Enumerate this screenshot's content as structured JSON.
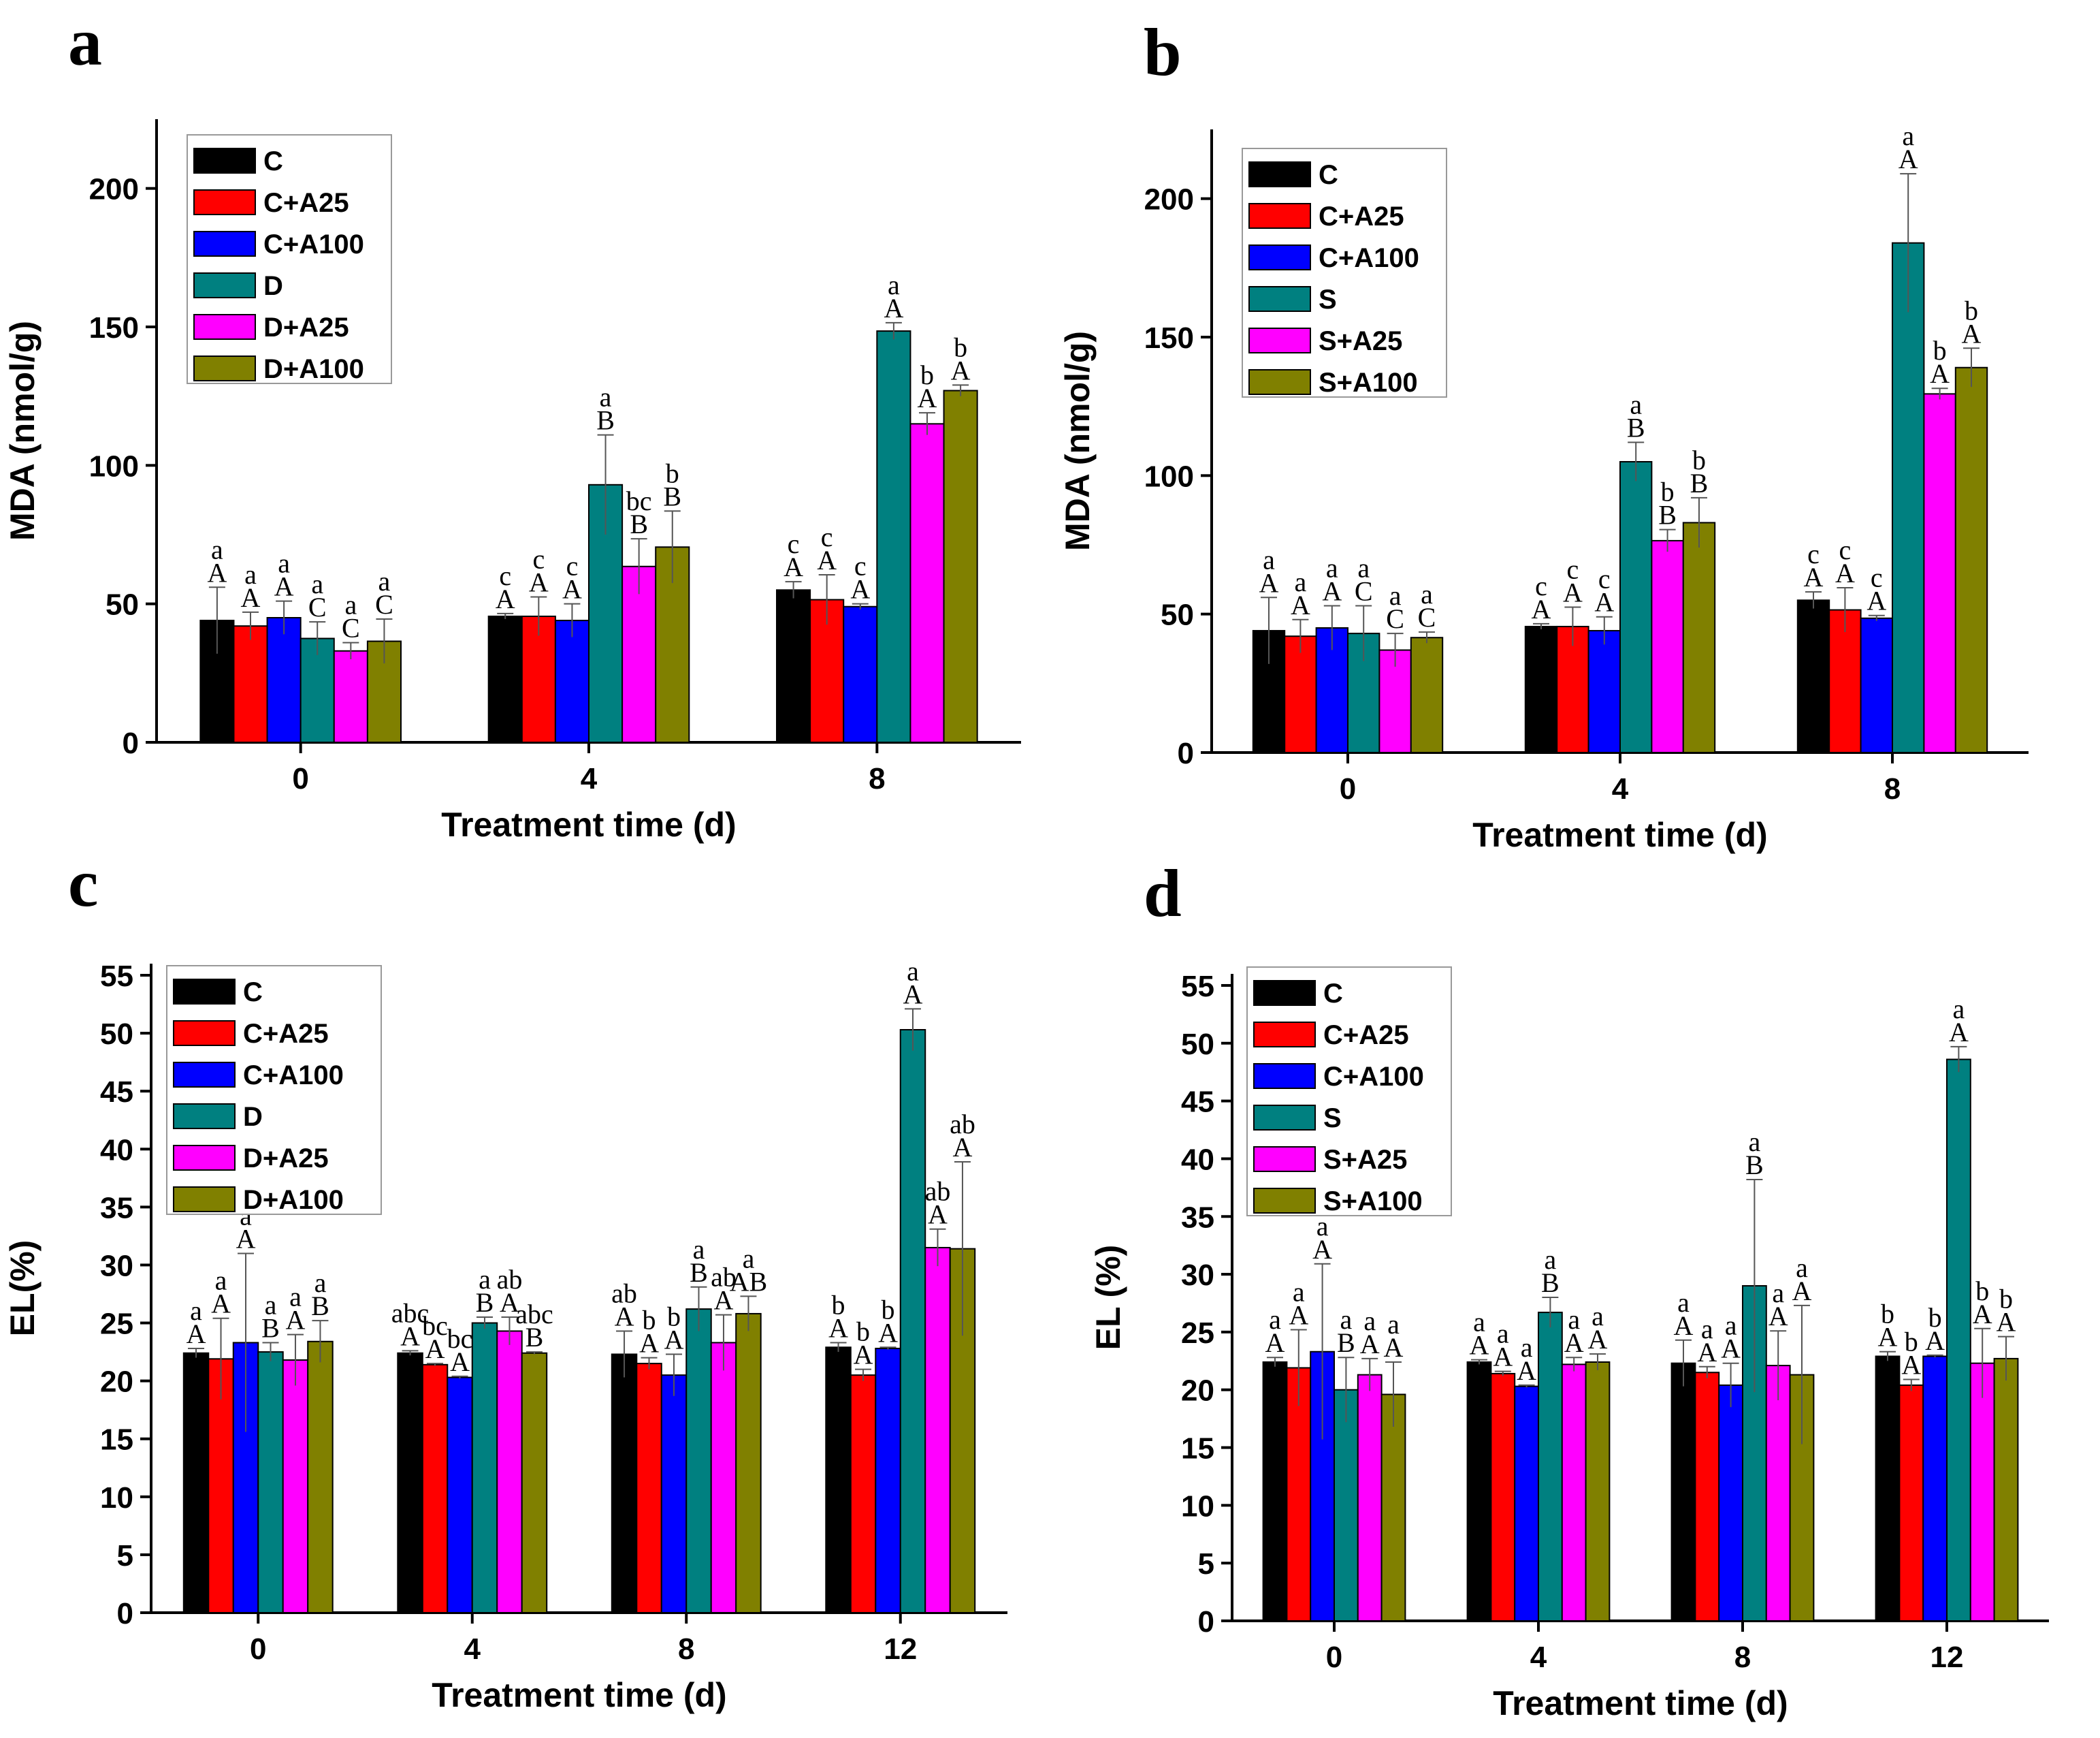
{
  "figure": {
    "panel_letters": [
      "a",
      "b",
      "c",
      "d"
    ]
  },
  "chart_data": [
    {
      "panel": "a",
      "type": "bar",
      "xlabel": "Treatment time (d)",
      "ylabel": "MDA (nmol/g)",
      "ylim": [
        0,
        225
      ],
      "yticks": [
        0,
        50,
        100,
        150,
        200
      ],
      "categories": [
        "0",
        "4",
        "8"
      ],
      "legend_position": "top-left",
      "series": [
        {
          "name": "C",
          "color": "#000000",
          "values": [
            44,
            45.5,
            55
          ],
          "errors": [
            12,
            1,
            3
          ],
          "lower": [
            "A",
            "A",
            "A"
          ],
          "upper": [
            "a",
            "c",
            "c"
          ]
        },
        {
          "name": "C+A25",
          "color": "#ff0000",
          "values": [
            42,
            45.5,
            51.5
          ],
          "errors": [
            5,
            7,
            9
          ],
          "lower": [
            "A",
            "A",
            "A"
          ],
          "upper": [
            "a",
            "c",
            "c"
          ]
        },
        {
          "name": "C+A100",
          "color": "#0000ff",
          "values": [
            45,
            44,
            49
          ],
          "errors": [
            6,
            6,
            1
          ],
          "lower": [
            "A",
            "A",
            "A"
          ],
          "upper": [
            "a",
            "c",
            "c"
          ]
        },
        {
          "name": "D",
          "color": "#008080",
          "values": [
            37.5,
            93,
            148.5
          ],
          "errors": [
            6,
            18,
            3
          ],
          "lower": [
            "C",
            "B",
            "A"
          ],
          "upper": [
            "a",
            "a",
            "a"
          ]
        },
        {
          "name": "D+A25",
          "color": "#ff00ff",
          "values": [
            33,
            63.5,
            115
          ],
          "errors": [
            3,
            10,
            4
          ],
          "lower": [
            "C",
            "B",
            "A"
          ],
          "upper": [
            "a",
            "bc",
            "b"
          ]
        },
        {
          "name": "D+A100",
          "color": "#808000",
          "values": [
            36.5,
            70.5,
            127
          ],
          "errors": [
            8,
            13,
            2
          ],
          "lower": [
            "C",
            "B",
            "A"
          ],
          "upper": [
            "a",
            "b",
            "b"
          ]
        }
      ]
    },
    {
      "panel": "b",
      "type": "bar",
      "xlabel": "Treatment time (d)",
      "ylabel": "MDA (nmol/g)",
      "ylim": [
        0,
        225
      ],
      "yticks": [
        0,
        50,
        100,
        150,
        200
      ],
      "categories": [
        "0",
        "4",
        "8"
      ],
      "legend_position": "top-left",
      "series": [
        {
          "name": "C",
          "color": "#000000",
          "values": [
            44,
            45.5,
            55
          ],
          "errors": [
            12,
            1,
            3
          ],
          "lower": [
            "A",
            "A",
            "A"
          ],
          "upper": [
            "a",
            "c",
            "c"
          ]
        },
        {
          "name": "C+A25",
          "color": "#ff0000",
          "values": [
            42,
            45.5,
            51.5
          ],
          "errors": [
            6,
            7,
            8
          ],
          "lower": [
            "A",
            "A",
            "A"
          ],
          "upper": [
            "a",
            "c",
            "c"
          ]
        },
        {
          "name": "C+A100",
          "color": "#0000ff",
          "values": [
            45,
            44,
            48.5
          ],
          "errors": [
            8,
            5,
            1
          ],
          "lower": [
            "A",
            "A",
            "A"
          ],
          "upper": [
            "a",
            "c",
            "c"
          ]
        },
        {
          "name": "S",
          "color": "#008080",
          "values": [
            43,
            105,
            184
          ],
          "errors": [
            10,
            7,
            25
          ],
          "lower": [
            "C",
            "B",
            "A"
          ],
          "upper": [
            "a",
            "a",
            "a"
          ]
        },
        {
          "name": "S+A25",
          "color": "#ff00ff",
          "values": [
            37,
            76.5,
            129.5
          ],
          "errors": [
            6,
            4,
            2
          ],
          "lower": [
            "C",
            "B",
            "A"
          ],
          "upper": [
            "a",
            "b",
            "b"
          ]
        },
        {
          "name": "S+A100",
          "color": "#808000",
          "values": [
            41.5,
            83,
            139
          ],
          "errors": [
            2,
            9,
            7
          ],
          "lower": [
            "C",
            "B",
            "A"
          ],
          "upper": [
            "a",
            "b",
            "b"
          ]
        }
      ]
    },
    {
      "panel": "c",
      "type": "bar",
      "xlabel": "Treatment time (d)",
      "ylabel": "EL(%)",
      "ylim": [
        0,
        56
      ],
      "yticks": [
        0,
        5,
        10,
        15,
        20,
        25,
        30,
        35,
        40,
        45,
        50,
        55
      ],
      "categories": [
        "0",
        "4",
        "8",
        "12"
      ],
      "legend_position": "top-left",
      "series": [
        {
          "name": "C",
          "color": "#000000",
          "values": [
            22.4,
            22.4,
            22.3,
            22.9
          ],
          "errors": [
            0.4,
            0.2,
            2,
            0.4
          ],
          "lower": [
            "A",
            "A",
            "A",
            "A"
          ],
          "upper": [
            "a",
            "abc",
            "ab",
            "b"
          ]
        },
        {
          "name": "C+A25",
          "color": "#ff0000",
          "values": [
            21.9,
            21.4,
            21.5,
            20.5
          ],
          "errors": [
            3.5,
            0.1,
            0.5,
            0.5
          ],
          "lower": [
            "A",
            "A",
            "A",
            "A"
          ],
          "upper": [
            "a",
            "bc",
            "b",
            "b"
          ]
        },
        {
          "name": "C+A100",
          "color": "#0000ff",
          "values": [
            23.3,
            20.3,
            20.5,
            22.8
          ],
          "errors": [
            7.7,
            0.1,
            1.8,
            0.1
          ],
          "lower": [
            "A",
            "A",
            "A",
            "A"
          ],
          "upper": [
            "a",
            "bc",
            "b",
            "b"
          ]
        },
        {
          "name": "D",
          "color": "#008080",
          "values": [
            22.5,
            25,
            26.2,
            50.3
          ],
          "errors": [
            0.8,
            0.5,
            1.9,
            1.8
          ],
          "lower": [
            "B",
            "B",
            "B",
            "A"
          ],
          "upper": [
            "a",
            "a",
            "a",
            "a"
          ]
        },
        {
          "name": "D+A25",
          "color": "#ff00ff",
          "values": [
            21.8,
            24.3,
            23.3,
            31.5
          ],
          "errors": [
            2.2,
            1.2,
            2.4,
            1.6
          ],
          "lower": [
            "A",
            "A",
            "A",
            "A"
          ],
          "upper": [
            "a",
            "ab",
            "ab",
            "ab"
          ]
        },
        {
          "name": "D+A100",
          "color": "#808000",
          "values": [
            23.4,
            22.4,
            25.8,
            31.4
          ],
          "errors": [
            1.8,
            0.1,
            1.5,
            7.5
          ],
          "lower": [
            "B",
            "B",
            "AB",
            "A"
          ],
          "upper": [
            "a",
            "abc",
            "a",
            "ab"
          ]
        }
      ]
    },
    {
      "panel": "d",
      "type": "bar",
      "xlabel": "Treatment time (d)",
      "ylabel": "EL (%)",
      "ylim": [
        0,
        56
      ],
      "yticks": [
        0,
        5,
        10,
        15,
        20,
        25,
        30,
        35,
        40,
        45,
        50,
        55
      ],
      "categories": [
        "0",
        "4",
        "8",
        "12"
      ],
      "legend_position": "top-left",
      "series": [
        {
          "name": "C",
          "color": "#000000",
          "values": [
            22.4,
            22.4,
            22.3,
            22.9
          ],
          "errors": [
            0.4,
            0.2,
            2,
            0.4
          ],
          "lower": [
            "A",
            "A",
            "A",
            "A"
          ],
          "upper": [
            "a",
            "a",
            "a",
            "b"
          ]
        },
        {
          "name": "C+A25",
          "color": "#ff0000",
          "values": [
            21.9,
            21.4,
            21.5,
            20.4
          ],
          "errors": [
            3.3,
            0.2,
            0.5,
            0.5
          ],
          "lower": [
            "A",
            "A",
            "A",
            "A"
          ],
          "upper": [
            "a",
            "a",
            "a",
            "b"
          ]
        },
        {
          "name": "C+A100",
          "color": "#0000ff",
          "values": [
            23.3,
            20.3,
            20.4,
            22.9
          ],
          "errors": [
            7.6,
            0.1,
            1.9,
            0.1
          ],
          "lower": [
            "A",
            "A",
            "A",
            "A"
          ],
          "upper": [
            "a",
            "a",
            "a",
            "b"
          ]
        },
        {
          "name": "S",
          "color": "#008080",
          "values": [
            20,
            26.7,
            29,
            48.6
          ],
          "errors": [
            2.8,
            1.3,
            9.2,
            1.1
          ],
          "lower": [
            "B",
            "B",
            "B",
            "A"
          ],
          "upper": [
            "a",
            "a",
            "a",
            "a"
          ]
        },
        {
          "name": "S+A25",
          "color": "#ff00ff",
          "values": [
            21.3,
            22.2,
            22.1,
            22.3
          ],
          "errors": [
            1.4,
            0.6,
            3,
            3
          ],
          "lower": [
            "A",
            "A",
            "A",
            "A"
          ],
          "upper": [
            "a",
            "a",
            "a",
            "b"
          ]
        },
        {
          "name": "S+A100",
          "color": "#808000",
          "values": [
            19.6,
            22.4,
            21.3,
            22.7
          ],
          "errors": [
            2.8,
            0.7,
            6,
            1.9
          ],
          "lower": [
            "A",
            "A",
            "A",
            "A"
          ],
          "upper": [
            "a",
            "a",
            "a",
            "b"
          ]
        }
      ]
    }
  ]
}
